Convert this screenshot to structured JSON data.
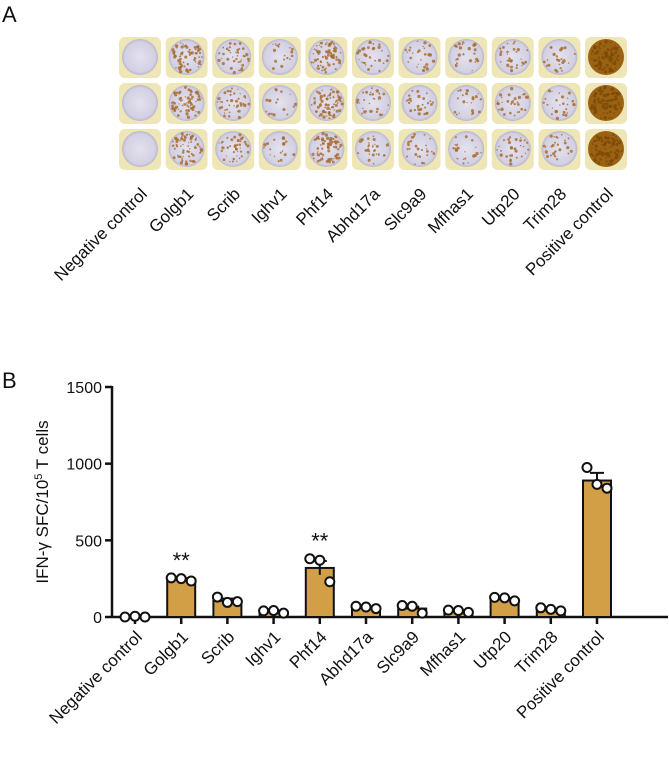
{
  "panel_a": {
    "label": "A",
    "rows": 3,
    "spot_intensity": [
      0,
      0.75,
      0.45,
      0.2,
      0.8,
      0.35,
      0.3,
      0.25,
      0.35,
      0.3,
      1.0
    ]
  },
  "panel_b": {
    "label": "B"
  },
  "colors": {
    "bar": "#D29E46",
    "outline": "#111111",
    "point_fill": "#ffffff"
  },
  "chart_data": {
    "type": "bar",
    "title": "",
    "xlabel": "",
    "ylabel": "IFN-γ SFC/10",
    "ylabel_sup": "5",
    "ylabel_tail": " T cells",
    "ylim": [
      0,
      1500
    ],
    "yticks": [
      0,
      500,
      1000,
      1500
    ],
    "categories": [
      "Negative control",
      "Golgb1",
      "Scrib",
      "Ighv1",
      "Phf14",
      "Abhd17a",
      "Slc9a9",
      "Mfhas1",
      "Utp20",
      "Trim28",
      "Positive control"
    ],
    "values": [
      2,
      245,
      105,
      35,
      320,
      60,
      55,
      35,
      115,
      45,
      890
    ],
    "sem": [
      2,
      8,
      15,
      8,
      45,
      6,
      12,
      6,
      8,
      8,
      50
    ],
    "points": [
      [
        0,
        5,
        0
      ],
      [
        255,
        250,
        235
      ],
      [
        130,
        95,
        100
      ],
      [
        40,
        42,
        25
      ],
      [
        380,
        370,
        230
      ],
      [
        70,
        65,
        55
      ],
      [
        75,
        70,
        25
      ],
      [
        45,
        42,
        30
      ],
      [
        128,
        125,
        105
      ],
      [
        60,
        50,
        40
      ],
      [
        975,
        865,
        840
      ]
    ],
    "annotations": [
      "",
      "**",
      "",
      "",
      "**",
      "",
      "",
      "",
      "",
      "",
      ""
    ]
  }
}
